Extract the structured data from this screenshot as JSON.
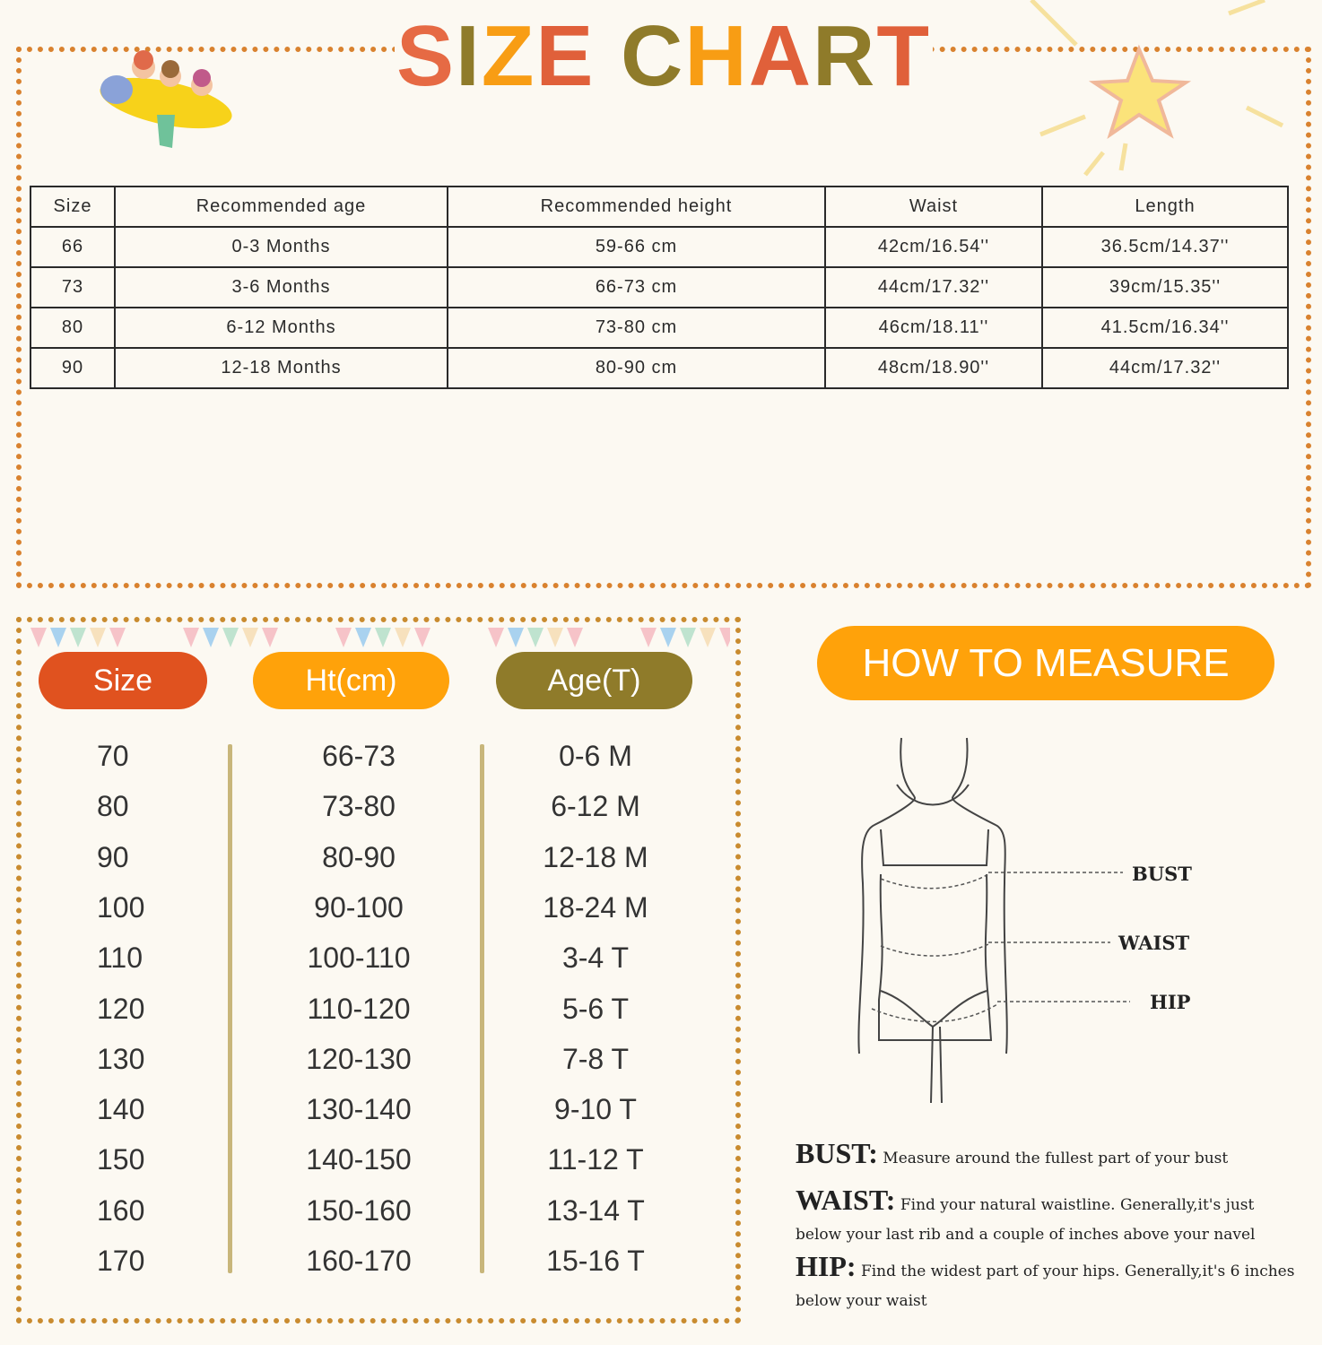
{
  "title": {
    "text": "SIZE CHART",
    "letters": [
      "S",
      "I",
      "Z",
      "E",
      " ",
      "C",
      "H",
      "A",
      "R",
      "T"
    ],
    "letter_colors": [
      "#e66a44",
      "#8f7b2a",
      "#f89d14",
      "#e0603a",
      "",
      "#8f7b2a",
      "#f89d14",
      "#e0603a",
      "#8f7b2a",
      "#e0603a"
    ]
  },
  "colors": {
    "background": "#fcf9f2",
    "size_pill": "#e0521f",
    "ht_pill": "#ffa20a",
    "age_pill": "#8f7b2a",
    "measure_pill": "#ffa20a",
    "divider": "#c8b67b"
  },
  "table": {
    "headers": [
      "Size",
      "Recommended age",
      "Recommended height",
      "Waist",
      "Length"
    ],
    "rows": [
      [
        "66",
        "0-3 Months",
        "59-66 cm",
        "42cm/16.54''",
        "36.5cm/14.37''"
      ],
      [
        "73",
        "3-6 Months",
        "66-73 cm",
        "44cm/17.32''",
        "39cm/15.35''"
      ],
      [
        "80",
        "6-12 Months",
        "73-80 cm",
        "46cm/18.11''",
        "41.5cm/16.34''"
      ],
      [
        "90",
        "12-18 Months",
        "80-90 cm",
        "48cm/18.90''",
        "44cm/17.32''"
      ]
    ]
  },
  "chart2": {
    "headers": [
      "Size",
      "Ht(cm)",
      "Age(T)"
    ],
    "sizes": [
      "70",
      "80",
      "90",
      "100",
      "110",
      "120",
      "130",
      "140",
      "150",
      "160",
      "170"
    ],
    "heights": [
      "66-73",
      "73-80",
      "80-90",
      "90-100",
      "100-110",
      "110-120",
      "120-130",
      "130-140",
      "140-150",
      "150-160",
      "160-170"
    ],
    "ages": [
      "0-6 M",
      "6-12 M",
      "12-18 M",
      "18-24 M",
      "3-4 T",
      "5-6 T",
      "7-8 T",
      "9-10 T",
      "11-12 T",
      "13-14 T",
      "15-16 T"
    ]
  },
  "measure": {
    "title": "HOW TO MEASURE",
    "labels": [
      "BUST",
      "WAIST",
      "HIP"
    ],
    "bust_term": "BUST:",
    "bust_text": "Measure around the fullest part of your bust",
    "waist_term": "WAIST:",
    "waist_text": "Find your natural waistline. Generally,it's just below your last rib and a couple of inches above your navel",
    "hip_term": "HIP:",
    "hip_text": "Find the widest part of your hips. Generally,it's 6 inches below your waist"
  }
}
